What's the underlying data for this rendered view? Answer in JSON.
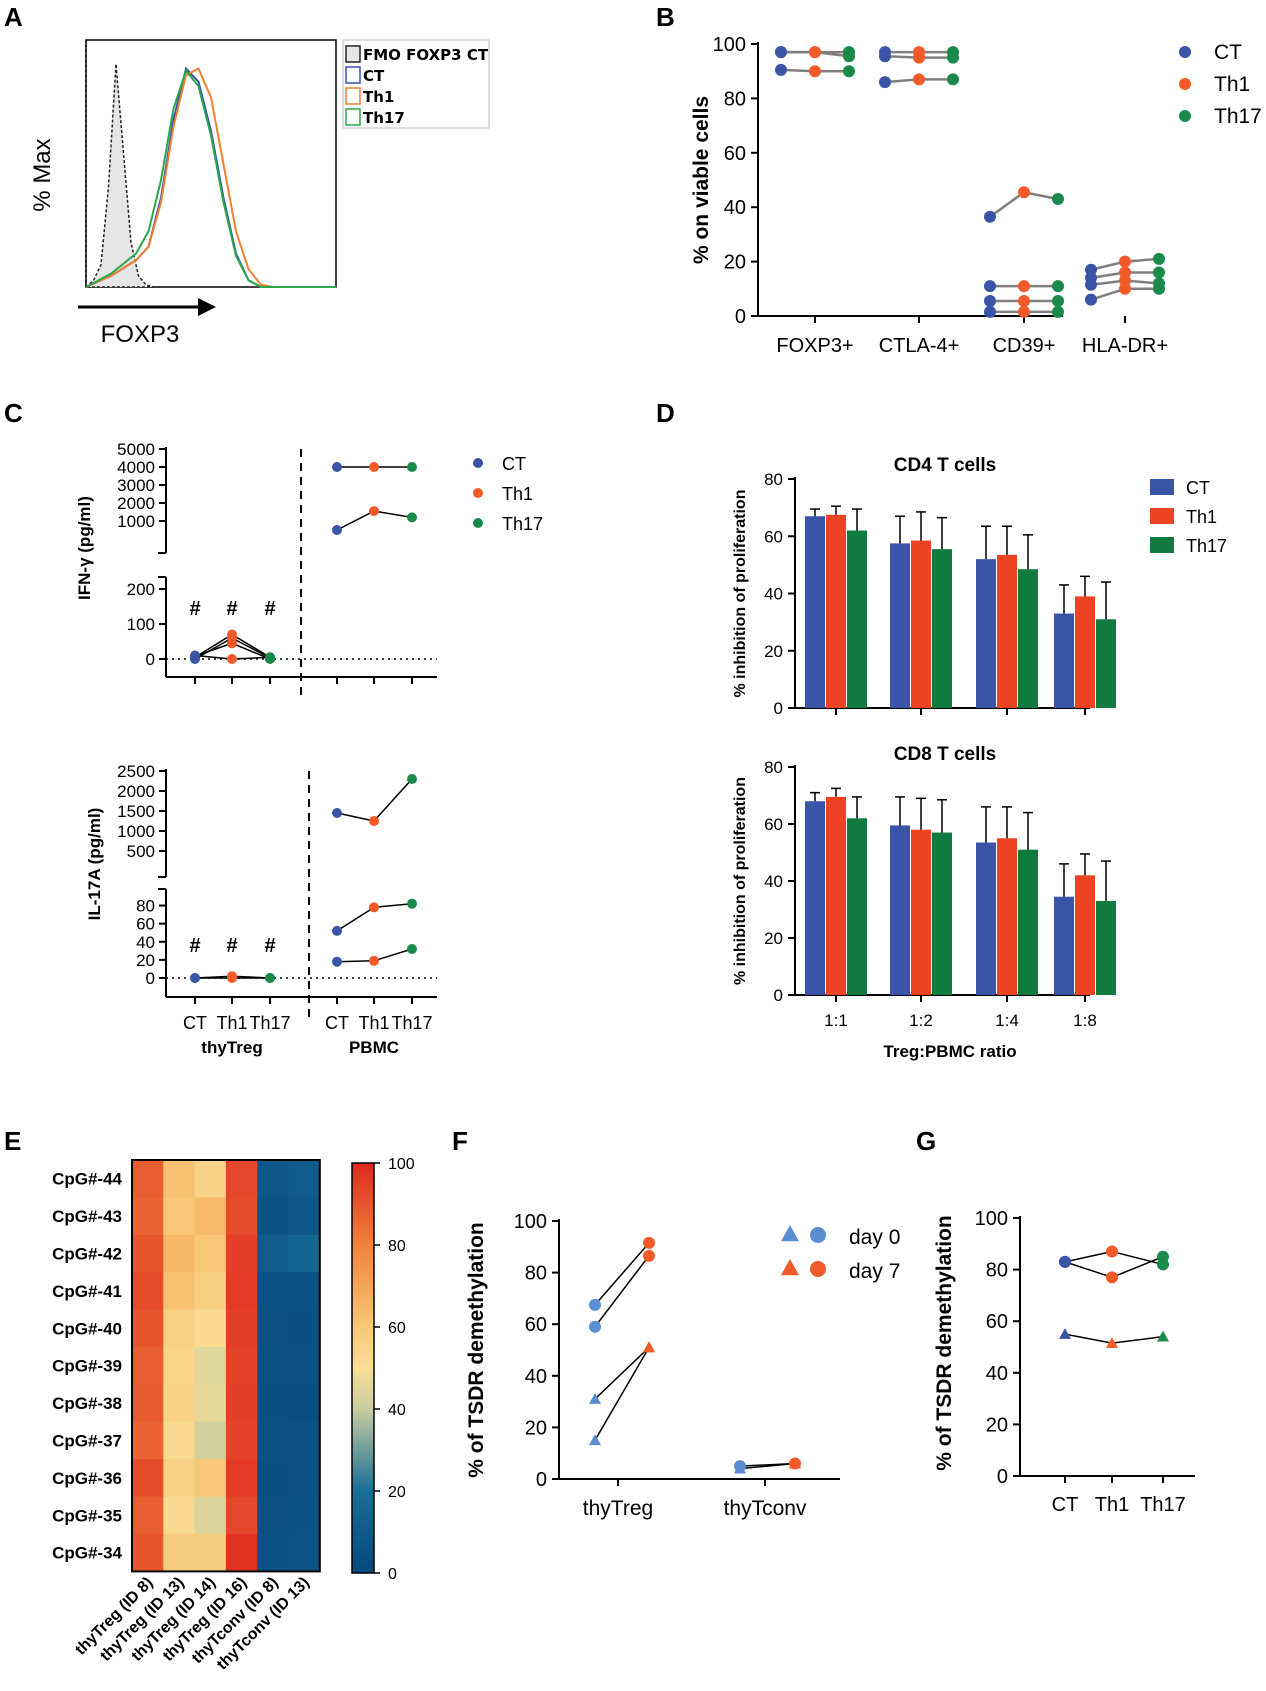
{
  "colors": {
    "CT": "#3a55a8",
    "Th1": "#f15a29",
    "Th17": "#1a8a4a",
    "day0": "#5b8dd1",
    "day7": "#f15a29",
    "bar_ct": "#3a55a8",
    "bar_th1": "#ee4323",
    "bar_th17": "#117a3f",
    "fmo_fill": "#e6e6e6",
    "hist_ct": "#3b4db5",
    "hist_th1": "#f08030",
    "hist_th17": "#2aa84a",
    "conn": "#7f7f7f"
  },
  "panels": {
    "A": "A",
    "B": "B",
    "C": "C",
    "D": "D",
    "E": "E",
    "F": "F",
    "G": "G"
  },
  "chart_data": [
    {
      "id": "A",
      "type": "line",
      "title": "",
      "xlabel": "FOXP3",
      "ylabel": "% Max",
      "legend": [
        "FMO FOXP3 CT",
        "CT",
        "Th1",
        "Th17"
      ],
      "series": [
        {
          "name": "FMO FOXP3 CT",
          "x": [
            0,
            0.02,
            0.04,
            0.06,
            0.08,
            0.1,
            0.12,
            0.14,
            0.16,
            0.18,
            0.2
          ],
          "y": [
            0,
            3,
            10,
            45,
            100,
            60,
            20,
            5,
            1,
            0,
            0
          ]
        },
        {
          "name": "CT",
          "x": [
            0,
            0.1,
            0.2,
            0.25,
            0.3,
            0.35,
            0.4,
            0.45,
            0.5,
            0.55,
            0.6,
            0.65,
            0.7,
            0.75,
            0.8,
            1
          ],
          "y": [
            0,
            5,
            12,
            18,
            40,
            75,
            98,
            92,
            70,
            40,
            15,
            3,
            0,
            0,
            0,
            0
          ]
        },
        {
          "name": "Th1",
          "x": [
            0,
            0.1,
            0.2,
            0.25,
            0.3,
            0.35,
            0.4,
            0.45,
            0.5,
            0.55,
            0.6,
            0.65,
            0.7,
            0.75,
            0.8,
            1
          ],
          "y": [
            0,
            5,
            12,
            18,
            38,
            72,
            95,
            98,
            85,
            55,
            25,
            8,
            1,
            0,
            0,
            0
          ]
        },
        {
          "name": "Th17",
          "x": [
            0,
            0.1,
            0.2,
            0.25,
            0.3,
            0.35,
            0.4,
            0.45,
            0.5,
            0.55,
            0.6,
            0.65,
            0.7,
            0.75,
            0.8,
            1
          ],
          "y": [
            0,
            6,
            15,
            25,
            48,
            80,
            97,
            90,
            68,
            38,
            14,
            3,
            0,
            0,
            0,
            0
          ]
        }
      ]
    },
    {
      "id": "B",
      "type": "scatter",
      "title": "",
      "ylabel": "% on viable cells",
      "ylim": [
        0,
        100
      ],
      "yticks": [
        0,
        20,
        40,
        60,
        80,
        100
      ],
      "categories": [
        "FOXP3+",
        "CTLA-4+",
        "CD39+",
        "HLA-DR+"
      ],
      "legend": [
        "CT",
        "Th1",
        "Th17"
      ],
      "donors": [
        {
          "category": "FOXP3+",
          "values": [
            97,
            97,
            95.5
          ]
        },
        {
          "category": "FOXP3+",
          "values": [
            97,
            97,
            97
          ]
        },
        {
          "category": "FOXP3+",
          "values": [
            90.5,
            90,
            90
          ]
        },
        {
          "category": "CTLA-4+",
          "values": [
            97,
            97,
            97
          ]
        },
        {
          "category": "CTLA-4+",
          "values": [
            95.5,
            95,
            95
          ]
        },
        {
          "category": "CTLA-4+",
          "values": [
            86,
            87,
            87
          ]
        },
        {
          "category": "CD39+",
          "values": [
            36.5,
            45.5,
            43
          ]
        },
        {
          "category": "CD39+",
          "values": [
            11,
            11,
            11
          ]
        },
        {
          "category": "CD39+",
          "values": [
            5.5,
            5.5,
            5.5
          ]
        },
        {
          "category": "CD39+",
          "values": [
            1.5,
            1.5,
            1.5
          ]
        },
        {
          "category": "HLA-DR+",
          "values": [
            17,
            20,
            21
          ]
        },
        {
          "category": "HLA-DR+",
          "values": [
            14,
            16,
            16
          ]
        },
        {
          "category": "HLA-DR+",
          "values": [
            11.5,
            13,
            12
          ]
        },
        {
          "category": "HLA-DR+",
          "values": [
            6,
            10,
            10
          ]
        }
      ]
    },
    {
      "id": "C1",
      "type": "scatter",
      "title": "",
      "ylabel": "IFN-γ (pg/ml)",
      "upper_ticks": [
        1000,
        2000,
        3000,
        4000,
        5000
      ],
      "lower_ticks": [
        0,
        100,
        200
      ],
      "categories": [
        "CT",
        "Th1",
        "Th17",
        "CT",
        "Th1",
        "Th17"
      ],
      "groups": [
        "thyTreg",
        "PBMC"
      ],
      "marks": [
        "#",
        "#",
        "#"
      ],
      "legend": [
        "CT",
        "Th1",
        "Th17"
      ],
      "thyTreg": [
        [
          5,
          70,
          5
        ],
        [
          0,
          60,
          3
        ],
        [
          8,
          45,
          0
        ],
        [
          10,
          0,
          5
        ]
      ],
      "PBMC": [
        [
          4000,
          4000,
          4000
        ],
        [
          500,
          1550,
          1200
        ]
      ]
    },
    {
      "id": "C2",
      "type": "scatter",
      "title": "",
      "ylabel": "IL-17A (pg/ml)",
      "upper_ticks": [
        500,
        1000,
        1500,
        2000,
        2500
      ],
      "lower_ticks": [
        0,
        20,
        40,
        60,
        80
      ],
      "categories": [
        "CT",
        "Th1",
        "Th17",
        "CT",
        "Th1",
        "Th17"
      ],
      "groups": [
        "thyTreg",
        "PBMC"
      ],
      "marks": [
        "#",
        "#",
        "#"
      ],
      "thyTreg": [
        [
          0,
          2,
          0
        ],
        [
          0,
          0,
          0
        ]
      ],
      "PBMC": [
        [
          1450,
          1250,
          2300
        ],
        [
          52,
          78,
          82
        ],
        [
          18,
          19,
          32
        ]
      ]
    },
    {
      "id": "D1",
      "type": "bar",
      "title": "CD4 T cells",
      "ylabel": "% inhibition of proliferation",
      "ylim": [
        0,
        80
      ],
      "yticks": [
        0,
        20,
        40,
        60,
        80
      ],
      "categories": [
        "1:1",
        "1:2",
        "1:4",
        "1:8"
      ],
      "series": [
        {
          "name": "CT",
          "values": [
            67,
            57.5,
            52,
            33
          ],
          "errors": [
            2.5,
            9.5,
            11.5,
            10
          ]
        },
        {
          "name": "Th1",
          "values": [
            67.5,
            58.5,
            53.5,
            39
          ],
          "errors": [
            3,
            10,
            10,
            7
          ]
        },
        {
          "name": "Th17",
          "values": [
            62,
            55.5,
            48.5,
            31
          ],
          "errors": [
            7.5,
            11,
            12,
            13
          ]
        }
      ]
    },
    {
      "id": "D2",
      "type": "bar",
      "title": "CD8 T cells",
      "ylabel": "% inhibition of proliferation",
      "xlabel": "Treg:PBMC ratio",
      "ylim": [
        0,
        80
      ],
      "yticks": [
        0,
        20,
        40,
        60,
        80
      ],
      "categories": [
        "1:1",
        "1:2",
        "1:4",
        "1:8"
      ],
      "series": [
        {
          "name": "CT",
          "values": [
            68,
            59.5,
            53.5,
            34.5
          ],
          "errors": [
            3,
            10,
            12.5,
            11.5
          ]
        },
        {
          "name": "Th1",
          "values": [
            69.5,
            58,
            55,
            42
          ],
          "errors": [
            3,
            11,
            11,
            7.5
          ]
        },
        {
          "name": "Th17",
          "values": [
            62,
            57,
            51,
            33
          ],
          "errors": [
            7.5,
            11.5,
            13,
            14
          ]
        }
      ],
      "legend": [
        "CT",
        "Th1",
        "Th17"
      ]
    },
    {
      "id": "E",
      "type": "heatmap",
      "title": "",
      "rows": [
        "CpG#-44",
        "CpG#-43",
        "CpG#-42",
        "CpG#-41",
        "CpG#-40",
        "CpG#-39",
        "CpG#-38",
        "CpG#-37",
        "CpG#-36",
        "CpG#-35",
        "CpG#-34"
      ],
      "columns": [
        "thyTreg (ID 8)",
        "thyTreg (ID 13)",
        "thyTreg (ID 14)",
        "thyTreg (ID 16)",
        "thyTconv (ID 8)",
        "thyTconv (ID 13)"
      ],
      "values": [
        [
          88,
          62,
          55,
          93,
          8,
          10
        ],
        [
          87,
          60,
          64,
          92,
          6,
          8
        ],
        [
          90,
          65,
          60,
          95,
          11,
          16
        ],
        [
          92,
          62,
          57,
          96,
          6,
          6
        ],
        [
          90,
          56,
          52,
          95,
          5,
          4
        ],
        [
          88,
          54,
          45,
          94,
          5,
          5
        ],
        [
          89,
          55,
          46,
          95,
          4,
          3
        ],
        [
          87,
          52,
          42,
          94,
          5,
          5
        ],
        [
          92,
          56,
          60,
          96,
          4,
          5
        ],
        [
          88,
          52,
          44,
          93,
          5,
          6
        ],
        [
          90,
          58,
          58,
          98,
          6,
          7
        ]
      ],
      "scale_min": 0,
      "scale_max": 100,
      "colorbar_ticks": [
        0,
        20,
        40,
        60,
        80,
        100
      ]
    },
    {
      "id": "F",
      "type": "scatter",
      "title": "",
      "ylabel": "% of TSDR demethylation",
      "ylim": [
        0,
        100
      ],
      "yticks": [
        0,
        20,
        40,
        60,
        80,
        100
      ],
      "categories": [
        "thyTreg",
        "thyTconv"
      ],
      "legend": [
        "day 0",
        "day 7"
      ],
      "thyTreg_circles": [
        [
          59,
          86.5
        ],
        [
          67.5,
          91.5
        ]
      ],
      "thyTreg_triangles": [
        [
          31,
          51
        ],
        [
          15,
          51
        ]
      ],
      "thyTconv": [
        [
          4,
          6
        ],
        [
          5,
          6
        ]
      ]
    },
    {
      "id": "G",
      "type": "scatter",
      "title": "",
      "ylabel": "% of TSDR demethylation",
      "ylim": [
        0,
        100
      ],
      "yticks": [
        0,
        20,
        40,
        60,
        80,
        100
      ],
      "categories": [
        "CT",
        "Th1",
        "Th17"
      ],
      "circles": [
        [
          83,
          87,
          82
        ],
        [
          83,
          77,
          85
        ]
      ],
      "triangles": [
        [
          55,
          51.5,
          54
        ]
      ]
    }
  ]
}
